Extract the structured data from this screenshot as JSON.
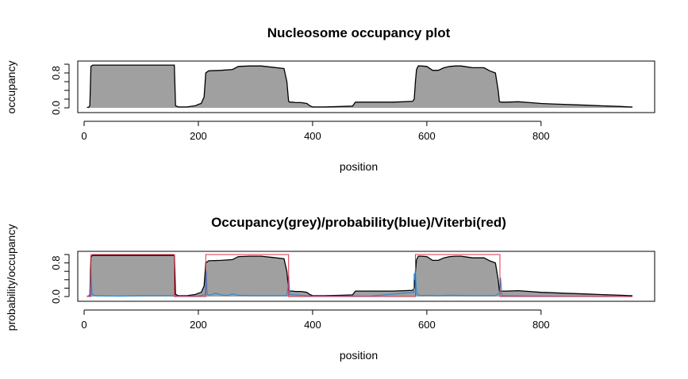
{
  "chart_data": [
    {
      "type": "area",
      "title": "Nucleosome occupancy plot",
      "xlabel": "position",
      "ylabel": "occupancy",
      "xlim": [
        0,
        960
      ],
      "ylim": [
        0,
        1
      ],
      "x_ticks": [
        0,
        200,
        400,
        600,
        800
      ],
      "y_ticks": [
        0,
        0.2,
        0.4,
        0.6,
        0.8,
        1.0
      ],
      "y_tick_labels": [
        "0.0",
        "",
        "",
        "",
        "0.8",
        ""
      ],
      "grid": false,
      "colors": {
        "fill": "#a0a0a0",
        "line": "#000000"
      },
      "series": [
        {
          "x": [
            5,
            8,
            10,
            12,
            15,
            40,
            80,
            120,
            158,
            160,
            165,
            180,
            195,
            200,
            205,
            210,
            213,
            218,
            240,
            260,
            270,
            290,
            310,
            330,
            350,
            355,
            358,
            360,
            365,
            370,
            380,
            390,
            395,
            400,
            405,
            420,
            450,
            470,
            475,
            478,
            500,
            520,
            540,
            560,
            575,
            578,
            580,
            582,
            585,
            590,
            600,
            610,
            620,
            630,
            640,
            650,
            660,
            670,
            680,
            690,
            700,
            710,
            720,
            725,
            727,
            730,
            740,
            760,
            780,
            800,
            820,
            840,
            860,
            880,
            900,
            920,
            940,
            955,
            960
          ],
          "y": [
            0.01,
            0.01,
            0.05,
            0.95,
            0.98,
            0.98,
            0.98,
            0.98,
            0.98,
            0.05,
            0.02,
            0.02,
            0.05,
            0.08,
            0.1,
            0.25,
            0.8,
            0.85,
            0.86,
            0.88,
            0.95,
            0.96,
            0.96,
            0.93,
            0.9,
            0.6,
            0.15,
            0.13,
            0.13,
            0.12,
            0.12,
            0.1,
            0.05,
            0.02,
            0.02,
            0.02,
            0.03,
            0.04,
            0.13,
            0.13,
            0.13,
            0.13,
            0.13,
            0.14,
            0.15,
            0.2,
            0.6,
            0.88,
            0.96,
            0.96,
            0.95,
            0.86,
            0.86,
            0.92,
            0.95,
            0.96,
            0.96,
            0.94,
            0.92,
            0.92,
            0.92,
            0.85,
            0.8,
            0.4,
            0.14,
            0.13,
            0.13,
            0.14,
            0.12,
            0.1,
            0.09,
            0.08,
            0.07,
            0.06,
            0.05,
            0.04,
            0.03,
            0.02,
            0.02
          ]
        }
      ]
    },
    {
      "type": "area",
      "title": "Occupancy(grey)/probability(blue)/Viterbi(red)",
      "xlabel": "position",
      "ylabel": "probability/occupancy",
      "xlim": [
        0,
        960
      ],
      "ylim": [
        0,
        1
      ],
      "x_ticks": [
        0,
        200,
        400,
        600,
        800
      ],
      "y_ticks": [
        0,
        0.2,
        0.4,
        0.6,
        0.8,
        1.0
      ],
      "y_tick_labels": [
        "0.0",
        "",
        "",
        "",
        "0.8",
        ""
      ],
      "grid": false,
      "colors": {
        "fill": "#a0a0a0",
        "line": "#000000",
        "probability": "#2b8cd6",
        "viterbi": "#e0304a"
      },
      "series": [
        {
          "x": [
            5,
            8,
            10,
            12,
            15,
            40,
            80,
            120,
            158,
            160,
            165,
            180,
            195,
            200,
            205,
            210,
            213,
            218,
            240,
            260,
            270,
            290,
            310,
            330,
            350,
            355,
            358,
            360,
            365,
            370,
            380,
            390,
            395,
            400,
            405,
            420,
            450,
            470,
            475,
            478,
            500,
            520,
            540,
            560,
            575,
            578,
            580,
            582,
            585,
            590,
            600,
            610,
            620,
            630,
            640,
            650,
            660,
            670,
            680,
            690,
            700,
            710,
            720,
            725,
            727,
            730,
            740,
            760,
            780,
            800,
            820,
            840,
            860,
            880,
            900,
            920,
            940,
            955,
            960
          ],
          "y": [
            0.01,
            0.01,
            0.05,
            0.95,
            0.98,
            0.98,
            0.98,
            0.98,
            0.98,
            0.05,
            0.02,
            0.02,
            0.05,
            0.08,
            0.1,
            0.25,
            0.8,
            0.85,
            0.86,
            0.88,
            0.95,
            0.96,
            0.96,
            0.93,
            0.9,
            0.6,
            0.15,
            0.13,
            0.13,
            0.12,
            0.12,
            0.1,
            0.05,
            0.02,
            0.02,
            0.02,
            0.03,
            0.04,
            0.13,
            0.13,
            0.13,
            0.13,
            0.13,
            0.14,
            0.15,
            0.2,
            0.6,
            0.88,
            0.96,
            0.96,
            0.95,
            0.86,
            0.86,
            0.92,
            0.95,
            0.96,
            0.96,
            0.94,
            0.92,
            0.92,
            0.92,
            0.85,
            0.8,
            0.4,
            0.14,
            0.13,
            0.13,
            0.14,
            0.12,
            0.1,
            0.09,
            0.08,
            0.07,
            0.06,
            0.05,
            0.04,
            0.03,
            0.02,
            0.02
          ]
        },
        {
          "x": [
            5,
            10,
            11,
            12,
            13,
            14,
            20,
            60,
            100,
            150,
            160,
            200,
            212,
            213,
            214,
            215,
            216,
            220,
            230,
            240,
            250,
            260,
            270,
            300,
            330,
            355,
            357,
            358,
            359,
            360,
            400,
            500,
            577,
            578,
            579,
            580,
            581,
            582,
            583,
            590,
            600,
            620,
            640,
            680,
            720,
            728,
            729,
            730,
            731,
            732,
            800,
            900,
            960
          ],
          "y": [
            0.0,
            0.02,
            0.3,
            0.6,
            0.2,
            0.05,
            0.02,
            0.01,
            0.02,
            0.02,
            0.01,
            0.01,
            0.05,
            0.35,
            0.6,
            0.15,
            0.05,
            0.03,
            0.08,
            0.04,
            0.02,
            0.06,
            0.03,
            0.02,
            0.02,
            0.02,
            0.25,
            0.5,
            0.3,
            0.05,
            0.01,
            0.01,
            0.1,
            0.55,
            0.4,
            0.6,
            0.3,
            0.1,
            0.05,
            0.02,
            0.03,
            0.02,
            0.03,
            0.02,
            0.02,
            0.1,
            0.45,
            0.3,
            0.08,
            0.02,
            0.01,
            0.0,
            0.0
          ]
        },
        {
          "x": [
            5,
            12,
            12,
            158,
            158,
            213,
            213,
            358,
            358,
            580,
            580,
            728,
            728,
            960
          ],
          "y": [
            0,
            0,
            1,
            1,
            0,
            0,
            1,
            1,
            0,
            0,
            1,
            1,
            0,
            0
          ]
        }
      ]
    }
  ]
}
